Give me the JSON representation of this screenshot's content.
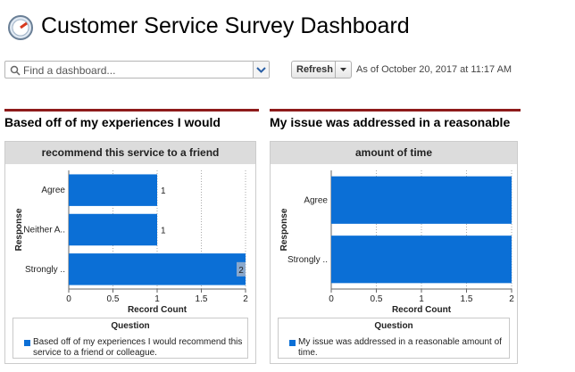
{
  "header": {
    "title": "Customer Service Survey Dashboard",
    "search_placeholder": "Find a dashboard...",
    "refresh": "Refresh",
    "timestamp": "As of October 20, 2017 at 11:17 AM"
  },
  "chart_data": [
    {
      "type": "bar",
      "orientation": "horizontal",
      "title": "Based off of my experiences I would",
      "subtitle": "recommend this service to a friend",
      "categories": [
        "Agree",
        "Neither A..",
        "Strongly .."
      ],
      "series": [
        {
          "name": "Based off of my experiences I would recommend this service to a friend or colleague.",
          "color": "#0b6fd6",
          "values": [
            1,
            1,
            2
          ]
        }
      ],
      "xlim": [
        0,
        2
      ],
      "xticks": [
        0,
        0.5,
        1,
        1.5,
        2
      ],
      "x_label": "Record Count",
      "y_label": "Response",
      "legend_title": "Question",
      "data_labels": true,
      "grid": true
    },
    {
      "type": "bar",
      "orientation": "horizontal",
      "title": "My issue was addressed in a reasonable",
      "subtitle": "amount of time",
      "categories": [
        "Agree",
        "Strongly .."
      ],
      "series": [
        {
          "name": "My issue was addressed in a reasonable amount of time.",
          "color": "#0b6fd6",
          "values": [
            2,
            2
          ]
        }
      ],
      "xlim": [
        0,
        2
      ],
      "xticks": [
        0,
        0.5,
        1,
        1.5,
        2
      ],
      "x_label": "Record Count",
      "y_label": "Response",
      "legend_title": "Question",
      "data_labels": false,
      "grid": true
    }
  ]
}
